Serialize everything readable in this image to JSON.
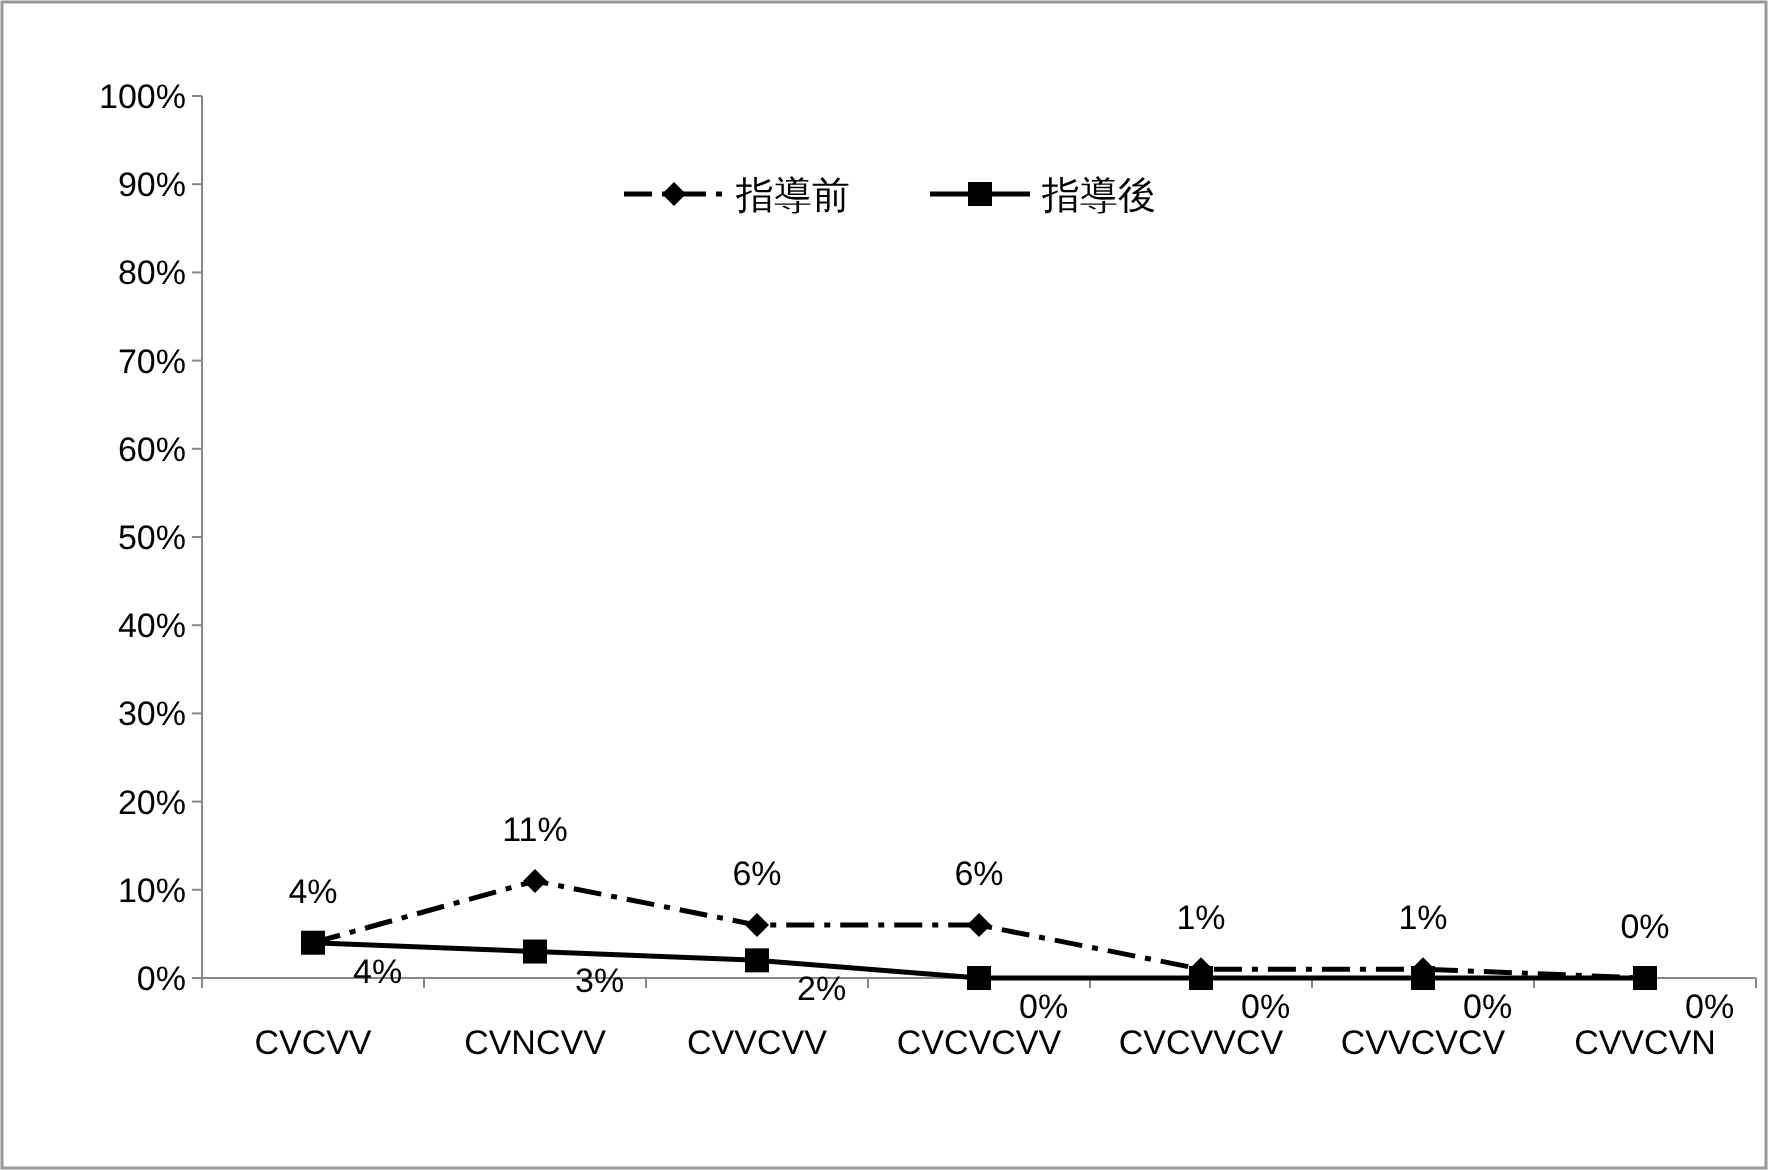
{
  "chart_data": {
    "type": "line",
    "categories": [
      "CVCVV",
      "CVNCVV",
      "CVVCVV",
      "CVCVCVV",
      "CVCVVCV",
      "CVVCVCV",
      "CVVCVN"
    ],
    "series": [
      {
        "name": "指導前",
        "color": "#000000",
        "marker": "diamond",
        "line_style": "dashed",
        "values": [
          4,
          11,
          6,
          6,
          1,
          1,
          0
        ],
        "value_labels": [
          "4%",
          "11%",
          "6%",
          "6%",
          "1%",
          "1%",
          "0%"
        ]
      },
      {
        "name": "指導後",
        "color": "#000000",
        "marker": "square",
        "line_style": "solid",
        "values": [
          4,
          3,
          2,
          0,
          0,
          0,
          0
        ],
        "value_labels": [
          "4%",
          "3%",
          "2%",
          "0%",
          "0%",
          "0%",
          "0%"
        ]
      }
    ],
    "ylim": [
      0,
      100
    ],
    "yticks": [
      {
        "value": 0,
        "label": "0%"
      },
      {
        "value": 10,
        "label": "10%"
      },
      {
        "value": 20,
        "label": "20%"
      },
      {
        "value": 30,
        "label": "30%"
      },
      {
        "value": 40,
        "label": "40%"
      },
      {
        "value": 50,
        "label": "50%"
      },
      {
        "value": 60,
        "label": "60%"
      },
      {
        "value": 70,
        "label": "70%"
      },
      {
        "value": 80,
        "label": "80%"
      },
      {
        "value": 90,
        "label": "90%"
      },
      {
        "value": 100,
        "label": "100%"
      }
    ],
    "grid": false,
    "legend": "top"
  }
}
